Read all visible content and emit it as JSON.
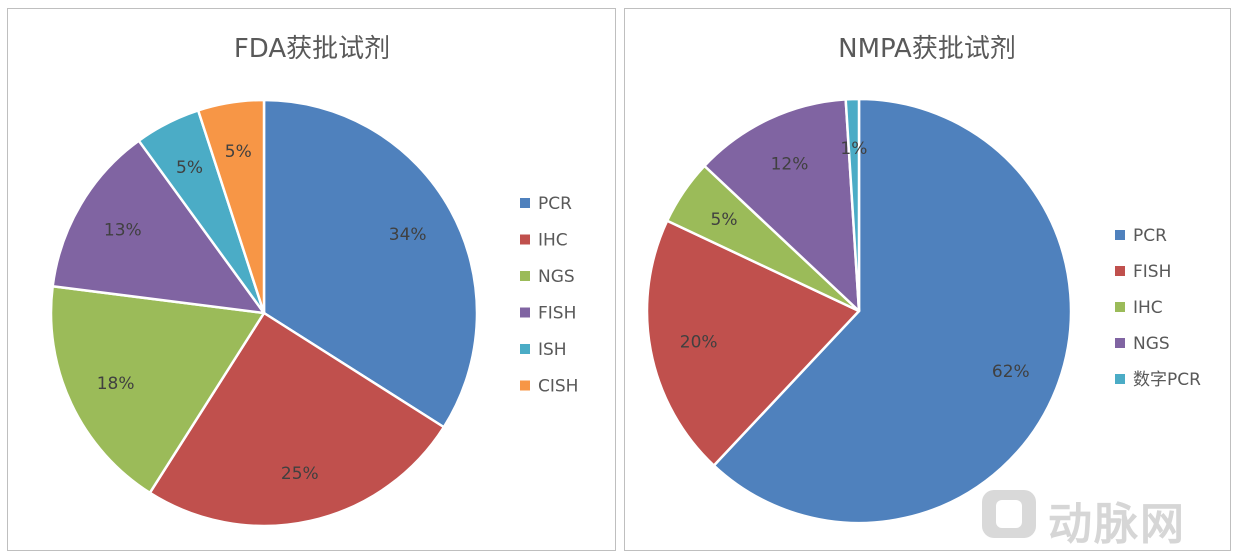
{
  "watermark": {
    "text": "动脉网"
  },
  "chart_data": [
    {
      "type": "pie",
      "title": "FDA获批试剂",
      "categories": [
        "PCR",
        "IHC",
        "NGS",
        "FISH",
        "ISH",
        "CISH"
      ],
      "values": [
        34,
        25,
        18,
        13,
        5,
        5
      ],
      "labels": [
        "34%",
        "25%",
        "18%",
        "13%",
        "5%",
        "5%"
      ],
      "colors": [
        "#4f81bd",
        "#c0504d",
        "#9bbb59",
        "#8064a2",
        "#4bacc6",
        "#f79646"
      ],
      "legend_position": "right"
    },
    {
      "type": "pie",
      "title": "NMPA获批试剂",
      "categories": [
        "PCR",
        "FISH",
        "IHC",
        "NGS",
        "数字PCR"
      ],
      "values": [
        62,
        20,
        5,
        12,
        1
      ],
      "labels": [
        "62%",
        "20%",
        "5%",
        "12%",
        "1%"
      ],
      "colors": [
        "#4f81bd",
        "#c0504d",
        "#9bbb59",
        "#8064a2",
        "#4bacc6"
      ],
      "legend_position": "right"
    }
  ]
}
